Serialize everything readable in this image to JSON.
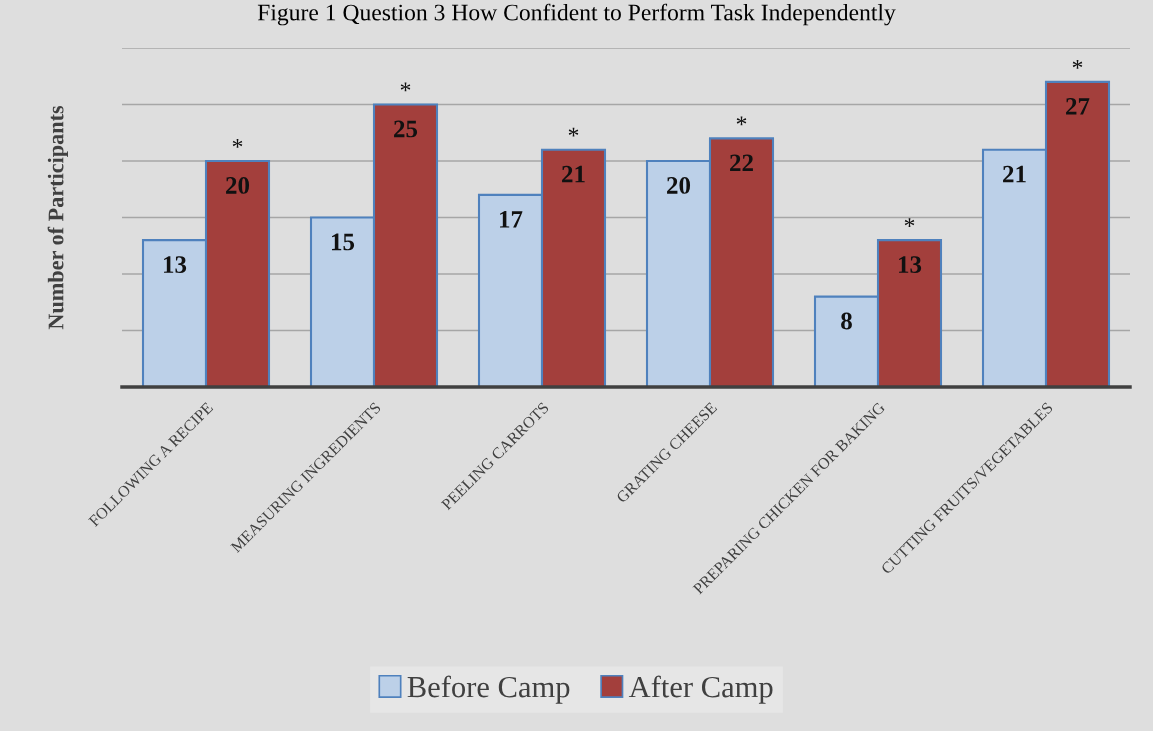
{
  "chart_data": {
    "type": "bar",
    "title": "Figure 1 Question 3 How Confident to Perform Task Independently",
    "ylabel": "Number of Participants",
    "categories": [
      "FOLLOWING A RECIPE",
      "MEASURING INGREDIENTS",
      "PEELING CARROTS",
      "GRATING CHEESE",
      "PREPARING CHICKEN FOR BAKING",
      "CUTTING FRUITS/VEGETABLES"
    ],
    "series": [
      {
        "name": "Before Camp",
        "color": "#bcd0e8",
        "values": [
          13,
          15,
          17,
          20,
          8,
          21
        ]
      },
      {
        "name": "After Camp",
        "color": "#a33f3c",
        "values": [
          20,
          25,
          21,
          22,
          13,
          27
        ]
      }
    ],
    "ylim": [
      0,
      30
    ],
    "yticks": [
      {
        "value": 0,
        "label": null
      },
      {
        "value": 5,
        "label": null
      },
      {
        "value": 10,
        "label": null
      },
      {
        "value": 15,
        "label": null
      },
      {
        "value": 20,
        "label": null
      },
      {
        "value": 25,
        "label": null
      },
      {
        "value": 30,
        "label": null
      }
    ],
    "tick_labels": "x",
    "grid": "y",
    "legend": "bottom",
    "data_labels": true,
    "annotations": [
      {
        "text": "*",
        "x": "FOLLOWING A RECIPE",
        "y": 20
      },
      {
        "text": "*",
        "x": "MEASURING INGREDIENTS",
        "y": 25
      },
      {
        "text": "*",
        "x": "PEELING CARROTS",
        "y": 21
      },
      {
        "text": "*",
        "x": "GRATING CHEESE",
        "y": 22
      },
      {
        "text": "*",
        "x": "PREPARING CHICKEN FOR BAKING",
        "y": 13
      },
      {
        "text": "*",
        "x": "CUTTING FRUITS/VEGETABLES",
        "y": 27
      }
    ]
  }
}
